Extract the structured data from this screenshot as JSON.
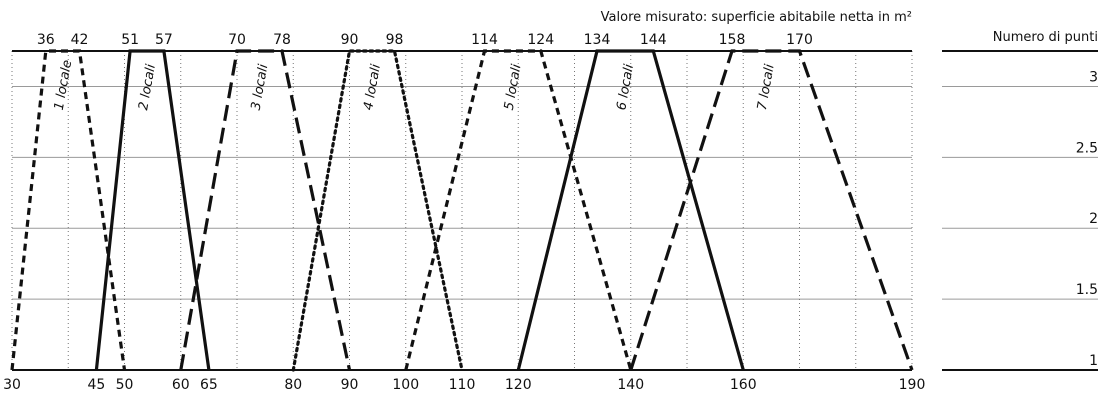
{
  "chart_data": {
    "type": "line",
    "title": "Valore misurato: superficie abitabile netta in m²",
    "ylabel": "Numero di punti",
    "xlim": [
      30,
      190
    ],
    "ylim": [
      1,
      3.25
    ],
    "bottom_ticks": [
      30,
      45,
      50,
      60,
      65,
      80,
      90,
      100,
      110,
      120,
      140,
      160,
      190
    ],
    "top_ticks": [
      36,
      42,
      51,
      57,
      70,
      78,
      90,
      98,
      114,
      124,
      134,
      144,
      158,
      170
    ],
    "y_ticks": [
      {
        "value": 3,
        "label": "3"
      },
      {
        "value": 2.5,
        "label": "2.5"
      },
      {
        "value": 2,
        "label": "2"
      },
      {
        "value": 1.5,
        "label": "1.5"
      },
      {
        "value": 1,
        "label": "1"
      }
    ],
    "series": [
      {
        "name": "1 locale",
        "style": "dashed-short",
        "x": [
          30,
          36,
          42,
          50
        ],
        "y": [
          1,
          3.25,
          3.25,
          1
        ]
      },
      {
        "name": "2 locali",
        "style": "solid",
        "x": [
          45,
          51,
          57,
          65
        ],
        "y": [
          1,
          3.25,
          3.25,
          1
        ]
      },
      {
        "name": "3 locali",
        "style": "dashed-long",
        "x": [
          60,
          70,
          78,
          90
        ],
        "y": [
          1,
          3.25,
          3.25,
          1
        ]
      },
      {
        "name": "4 locali",
        "style": "dotted",
        "x": [
          80,
          90,
          98,
          110
        ],
        "y": [
          1,
          3.25,
          3.25,
          1
        ]
      },
      {
        "name": "5 locali",
        "style": "dashed-short",
        "x": [
          100,
          114,
          124,
          140
        ],
        "y": [
          1,
          3.25,
          3.25,
          1
        ]
      },
      {
        "name": "6 locali",
        "style": "solid",
        "x": [
          120,
          134,
          144,
          160
        ],
        "y": [
          1,
          3.25,
          3.25,
          1
        ]
      },
      {
        "name": "7 locali",
        "style": "dashed-long",
        "x": [
          140,
          158,
          170,
          190
        ],
        "y": [
          1,
          3.25,
          3.25,
          1
        ]
      }
    ],
    "grid": true
  }
}
